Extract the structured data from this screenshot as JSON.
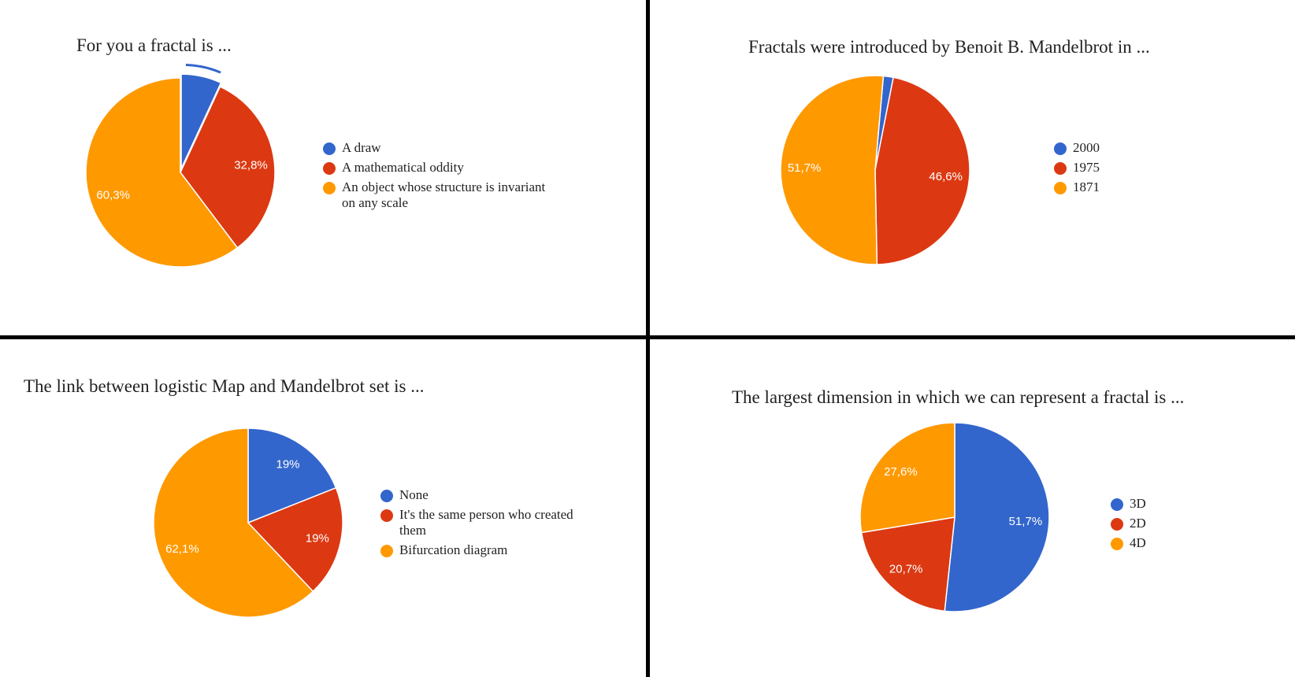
{
  "chart_data": [
    {
      "type": "pie",
      "title": "For you a fractal is ...",
      "slices": [
        {
          "label": "A draw",
          "value": 6.9,
          "value_label": "",
          "color": "#3366cc",
          "exploded": true
        },
        {
          "label": "A mathematical oddity",
          "value": 32.8,
          "value_label": "32,8%",
          "color": "#dc3912"
        },
        {
          "label": "An object whose structure is invariant on any scale",
          "value": 60.3,
          "value_label": "60,3%",
          "color": "#ff9900"
        }
      ],
      "legend_position": "right"
    },
    {
      "type": "pie",
      "title": "Fractals were introduced by Benoit B. Mandelbrot in ...",
      "slices": [
        {
          "label": "2000",
          "value": 1.7,
          "value_label": "",
          "color": "#3366cc"
        },
        {
          "label": "1975",
          "value": 46.6,
          "value_label": "46,6%",
          "color": "#dc3912"
        },
        {
          "label": "1871",
          "value": 51.7,
          "value_label": "51,7%",
          "color": "#ff9900"
        }
      ],
      "legend_position": "right"
    },
    {
      "type": "pie",
      "title": "The link between logistic Map and Mandelbrot set is ...",
      "slices": [
        {
          "label": "None",
          "value": 19,
          "value_label": "19%",
          "color": "#3366cc"
        },
        {
          "label": "It's the same person who created them",
          "value": 19,
          "value_label": "19%",
          "color": "#dc3912"
        },
        {
          "label": "Bifurcation diagram",
          "value": 62.1,
          "value_label": "62,1%",
          "color": "#ff9900"
        }
      ],
      "legend_position": "right"
    },
    {
      "type": "pie",
      "title": "The largest dimension in which we can represent a fractal is ...",
      "slices": [
        {
          "label": "3D",
          "value": 51.7,
          "value_label": "51,7%",
          "color": "#3366cc"
        },
        {
          "label": "2D",
          "value": 20.7,
          "value_label": "20,7%",
          "color": "#dc3912"
        },
        {
          "label": "4D",
          "value": 27.6,
          "value_label": "27,6%",
          "color": "#ff9900"
        }
      ],
      "legend_position": "right"
    }
  ]
}
